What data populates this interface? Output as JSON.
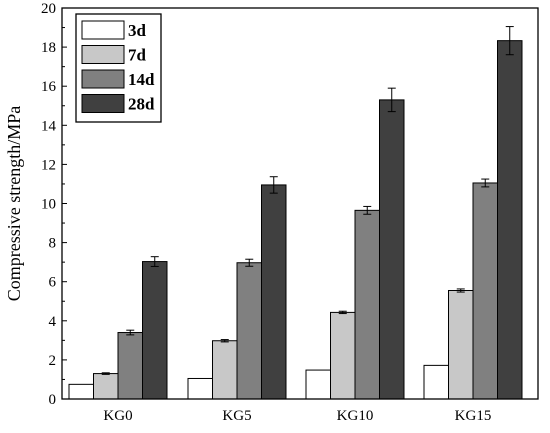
{
  "chart_data": {
    "type": "bar",
    "title": "",
    "xlabel": "",
    "ylabel": "Compressive strength/MPa",
    "ylim": [
      0,
      20
    ],
    "yticks": [
      0,
      2,
      4,
      6,
      8,
      10,
      12,
      14,
      16,
      18,
      20
    ],
    "grid": false,
    "legend_position": "top-left",
    "categories": [
      "KG0",
      "KG5",
      "KG10",
      "KG15"
    ],
    "series": [
      {
        "name": "3d",
        "color": "#ffffff",
        "values": [
          0.75,
          1.05,
          1.48,
          1.72
        ],
        "errors": [
          0,
          0,
          0,
          0
        ]
      },
      {
        "name": "7d",
        "color": "#c8c8c8",
        "values": [
          1.3,
          2.98,
          4.43,
          5.55
        ],
        "errors": [
          0.04,
          0.06,
          0.06,
          0.08
        ]
      },
      {
        "name": "14d",
        "color": "#808080",
        "values": [
          3.4,
          6.97,
          9.65,
          11.05
        ],
        "errors": [
          0.12,
          0.18,
          0.2,
          0.2
        ]
      },
      {
        "name": "28d",
        "color": "#404040",
        "values": [
          7.03,
          10.95,
          15.3,
          18.33
        ],
        "errors": [
          0.25,
          0.42,
          0.6,
          0.72
        ]
      }
    ]
  }
}
